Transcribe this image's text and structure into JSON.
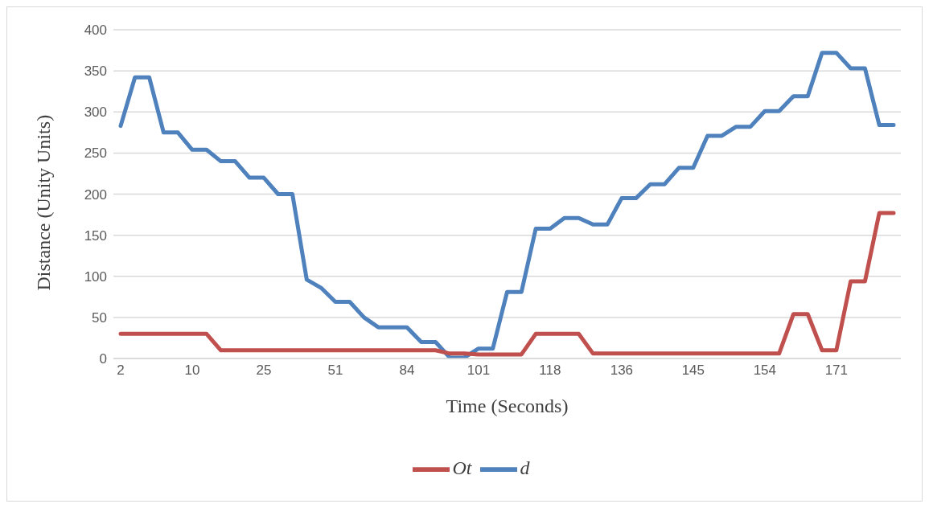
{
  "chart_data": {
    "type": "line",
    "xlabel": "Time (Seconds)",
    "ylabel": "Distance (Unity Units)",
    "categories": [
      "2",
      null,
      null,
      null,
      null,
      "10",
      null,
      null,
      null,
      null,
      "25",
      null,
      null,
      null,
      null,
      "51",
      null,
      null,
      null,
      null,
      "84",
      null,
      null,
      null,
      null,
      "101",
      null,
      null,
      null,
      null,
      "118",
      null,
      null,
      null,
      null,
      "136",
      null,
      null,
      null,
      null,
      "145",
      null,
      null,
      null,
      null,
      "154",
      null,
      null,
      null,
      null,
      "171",
      null,
      null,
      null,
      null
    ],
    "series": [
      {
        "name": "d",
        "color": "#4f81bd",
        "values": [
          283,
          342,
          342,
          275,
          275,
          254,
          254,
          240,
          240,
          220,
          220,
          200,
          200,
          96,
          86,
          69,
          69,
          50,
          38,
          38,
          38,
          20,
          20,
          1,
          1,
          12,
          12,
          81,
          81,
          158,
          158,
          171,
          171,
          163,
          163,
          195,
          195,
          212,
          212,
          232,
          232,
          271,
          271,
          282,
          282,
          301,
          301,
          319,
          319,
          372,
          372,
          353,
          353,
          284,
          284
        ]
      },
      {
        "name": "Ot",
        "color": "#c0504d",
        "values": [
          30,
          30,
          30,
          30,
          30,
          30,
          30,
          10,
          10,
          10,
          10,
          10,
          10,
          10,
          10,
          10,
          10,
          10,
          10,
          10,
          10,
          10,
          10,
          6,
          6,
          5,
          5,
          5,
          5,
          30,
          30,
          30,
          30,
          6,
          6,
          6,
          6,
          6,
          6,
          6,
          6,
          6,
          6,
          6,
          6,
          6,
          6,
          54,
          54,
          10,
          10,
          94,
          94,
          177,
          177
        ]
      }
    ],
    "ylim": [
      0,
      400
    ],
    "yticks": [
      0,
      50,
      100,
      150,
      200,
      250,
      300,
      350,
      400
    ],
    "grid": "y",
    "legend": "bottom",
    "marker": "none",
    "line_style": "solid"
  }
}
